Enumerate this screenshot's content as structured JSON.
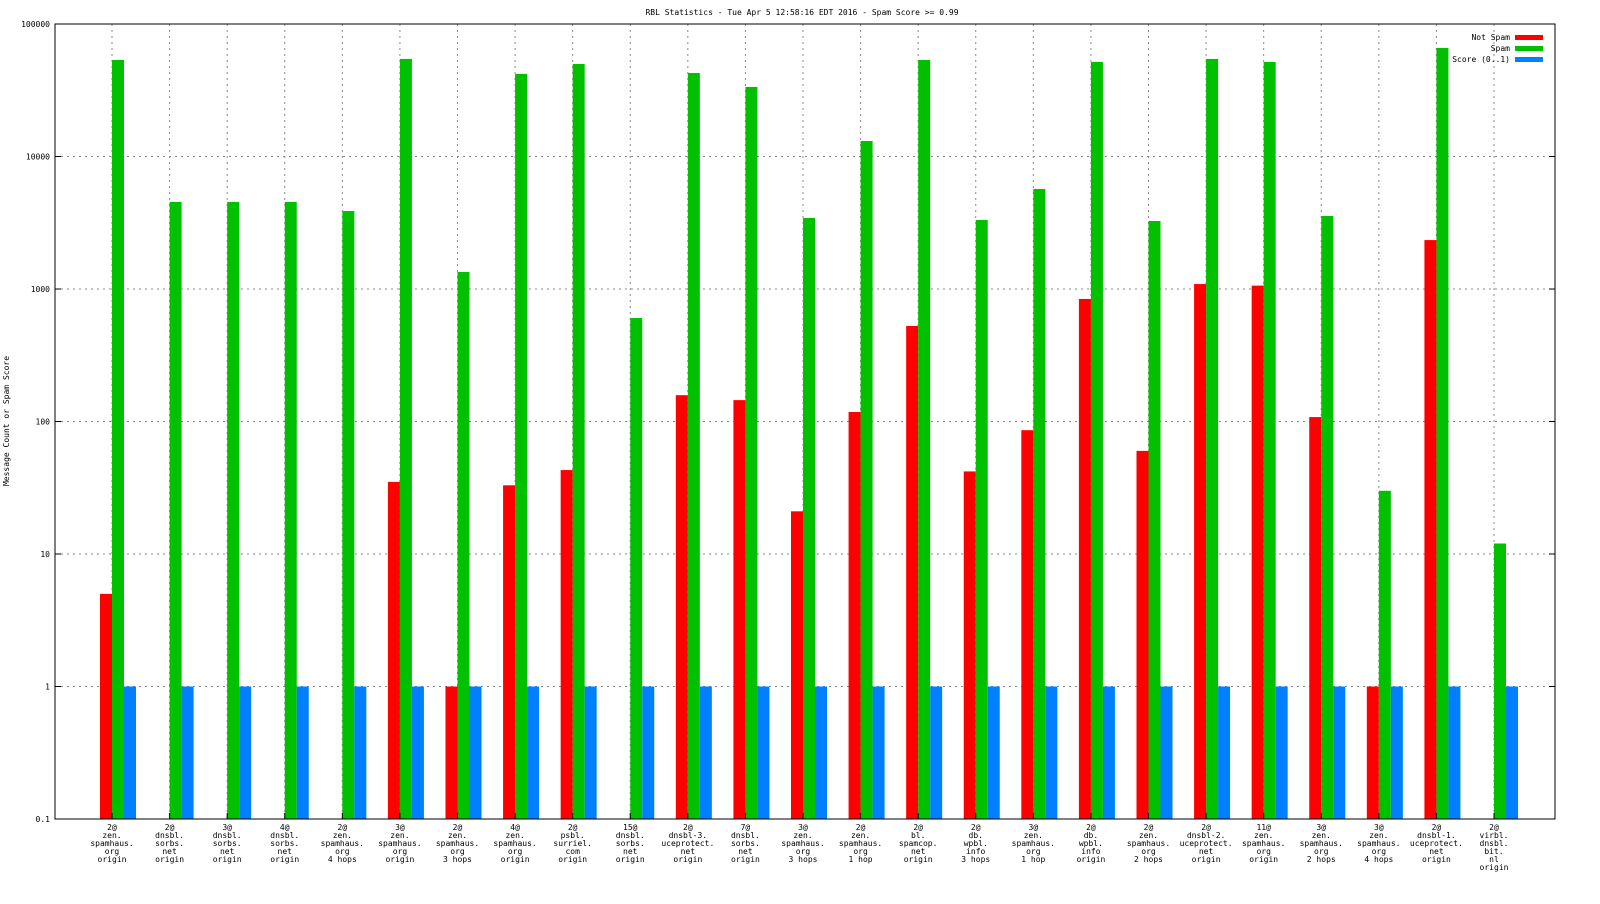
{
  "chart_data": {
    "type": "bar",
    "scale": "log",
    "title": "RBL Statistics - Tue Apr  5 12:58:16 EDT 2016 - Spam Score >= 0.99",
    "ylabel": "Message Count or Spam Score",
    "xlabel": "",
    "ylim": [
      0.1,
      100000
    ],
    "yticks": [
      "0.1",
      "1",
      "10",
      "100",
      "1000",
      "10000",
      "100000"
    ],
    "yticks_values": [
      0.1,
      1,
      10,
      100,
      1000,
      10000,
      100000
    ],
    "grid": true,
    "legend_position": "top-right",
    "categories": [
      [
        "2@",
        "zen.",
        "spamhaus.",
        "org",
        "origin"
      ],
      [
        "2@",
        "dnsbl.",
        "sorbs.",
        "net",
        "origin"
      ],
      [
        "3@",
        "dnsbl.",
        "sorbs.",
        "net",
        "origin"
      ],
      [
        "4@",
        "dnsbl.",
        "sorbs.",
        "net",
        "origin"
      ],
      [
        "2@",
        "zen.",
        "spamhaus.",
        "org",
        "4 hops"
      ],
      [
        "3@",
        "zen.",
        "spamhaus.",
        "org",
        "origin"
      ],
      [
        "2@",
        "zen.",
        "spamhaus.",
        "org",
        "3 hops"
      ],
      [
        "4@",
        "zen.",
        "spamhaus.",
        "org",
        "origin"
      ],
      [
        "2@",
        "psbl.",
        "surriel.",
        "com",
        "origin"
      ],
      [
        "15@",
        "dnsbl.",
        "sorbs.",
        "net",
        "origin"
      ],
      [
        "2@",
        "dnsbl-3.",
        "uceprotect.",
        "net",
        "origin"
      ],
      [
        "7@",
        "dnsbl.",
        "sorbs.",
        "net",
        "origin"
      ],
      [
        "3@",
        "zen.",
        "spamhaus.",
        "org",
        "3 hops"
      ],
      [
        "2@",
        "zen.",
        "spamhaus.",
        "org",
        "1 hop"
      ],
      [
        "2@",
        "bl.",
        "spamcop.",
        "net",
        "origin"
      ],
      [
        "2@",
        "db.",
        "wpbl.",
        "info",
        "3 hops"
      ],
      [
        "3@",
        "zen.",
        "spamhaus.",
        "org",
        "1 hop"
      ],
      [
        "2@",
        "db.",
        "wpbl.",
        "info",
        "origin"
      ],
      [
        "2@",
        "zen.",
        "spamhaus.",
        "org",
        "2 hops"
      ],
      [
        "2@",
        "dnsbl-2.",
        "uceprotect.",
        "net",
        "origin"
      ],
      [
        "11@",
        "zen.",
        "spamhaus.",
        "org",
        "origin"
      ],
      [
        "3@",
        "zen.",
        "spamhaus.",
        "org",
        "2 hops"
      ],
      [
        "3@",
        "zen.",
        "spamhaus.",
        "org",
        "4 hops"
      ],
      [
        "2@",
        "dnsbl-1.",
        "uceprotect.",
        "net",
        "origin"
      ],
      [
        "2@",
        "virbl.",
        "dnsbl.",
        "bit.",
        "nl",
        "origin"
      ]
    ],
    "series": [
      {
        "name": "Not Spam",
        "color": "#ff0000",
        "values": [
          5,
          null,
          null,
          null,
          null,
          35,
          1,
          33,
          43,
          null,
          158,
          145,
          21,
          118,
          526,
          42,
          86,
          841,
          60,
          1090,
          1060,
          108,
          1,
          2340,
          null
        ]
      },
      {
        "name": "Spam",
        "color": "#00c000",
        "values": [
          53500,
          4540,
          4540,
          4540,
          3880,
          54500,
          1345,
          42000,
          49900,
          604,
          42700,
          33500,
          3435,
          13100,
          53500,
          3320,
          5690,
          51700,
          3260,
          54500,
          51700,
          3560,
          30,
          66000,
          12
        ]
      },
      {
        "name": "Score (0..1)",
        "color": "#0080ff",
        "values": [
          1,
          1,
          1,
          1,
          1,
          1,
          1,
          1,
          1,
          1,
          1,
          1,
          1,
          1,
          1,
          1,
          1,
          1,
          1,
          1,
          1,
          1,
          1,
          1,
          1
        ]
      }
    ]
  }
}
